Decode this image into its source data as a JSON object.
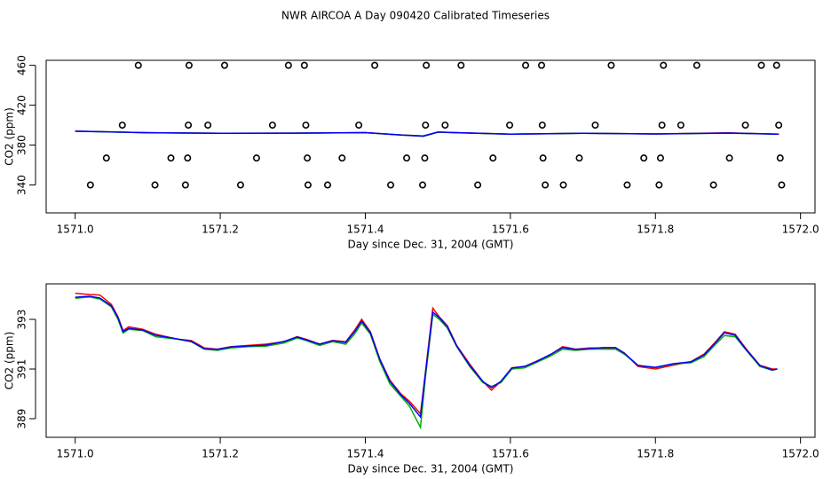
{
  "title": "NWR AIRCOA A  Day 090420  Calibrated Timeseries",
  "chart_data": [
    {
      "type": "scatter",
      "xlabel": "Day since Dec. 31, 2004 (GMT)",
      "ylabel": "CO2 (ppm)",
      "xlim": [
        1570.96,
        1572.02
      ],
      "ylim": [
        312,
        465
      ],
      "xticks": [
        {
          "value": 1571,
          "label": "1571.0"
        },
        1571.2,
        1571.4,
        1571.6,
        1571.8,
        {
          "value": 1572,
          "label": "1572.0"
        }
      ],
      "yticks": [
        340,
        380,
        420,
        460
      ],
      "points": {
        "color": "#000000",
        "x": [
          1571.087,
          1571.157,
          1571.206,
          1571.294,
          1571.316,
          1571.413,
          1571.484,
          1571.532,
          1571.621,
          1571.643,
          1571.739,
          1571.811,
          1571.857,
          1571.946,
          1571.967,
          1571.065,
          1571.156,
          1571.183,
          1571.272,
          1571.318,
          1571.391,
          1571.483,
          1571.51,
          1571.599,
          1571.644,
          1571.717,
          1571.809,
          1571.835,
          1571.924,
          1571.97,
          1571.043,
          1571.132,
          1571.155,
          1571.25,
          1571.32,
          1571.368,
          1571.457,
          1571.482,
          1571.576,
          1571.645,
          1571.695,
          1571.784,
          1571.807,
          1571.902,
          1571.972,
          1571.021,
          1571.11,
          1571.152,
          1571.228,
          1571.321,
          1571.348,
          1571.435,
          1571.479,
          1571.555,
          1571.648,
          1571.673,
          1571.761,
          1571.805,
          1571.88,
          1571.974
        ],
        "y": [
          460,
          460,
          460,
          460,
          460,
          460,
          460,
          460,
          460,
          460,
          460,
          460,
          460,
          460,
          460,
          400,
          400,
          400,
          400,
          400,
          400,
          400,
          400,
          400,
          400,
          400,
          400,
          400,
          400,
          400,
          367,
          367,
          367,
          367,
          367,
          367,
          367,
          367,
          367,
          367,
          367,
          367,
          367,
          367,
          367,
          340,
          340,
          340,
          340,
          340,
          340,
          340,
          340,
          340,
          340,
          340,
          340,
          340,
          340,
          340
        ]
      },
      "lines": {
        "x": [
          1571.0,
          1571.1,
          1571.2,
          1571.3,
          1571.4,
          1571.45,
          1571.48,
          1571.5,
          1571.6,
          1571.7,
          1571.8,
          1571.9,
          1571.97
        ],
        "series": [
          {
            "color": "#ff0000",
            "values": [
              393.9,
              392.4,
              391.8,
              392.0,
              392.5,
              390.2,
              389.2,
              393.0,
              391.0,
              391.8,
              391.2,
              392.2,
              391.0
            ]
          },
          {
            "color": "#00b000",
            "values": [
              393.8,
              392.4,
              391.8,
              392.0,
              392.4,
              390.0,
              388.8,
              392.9,
              391.0,
              391.8,
              391.2,
              392.0,
              391.0
            ]
          },
          {
            "color": "#0000ff",
            "values": [
              393.9,
              392.4,
              391.8,
              392.0,
              392.5,
              390.0,
              389.0,
              393.0,
              391.0,
              391.8,
              391.2,
              392.1,
              391.0
            ]
          }
        ]
      }
    },
    {
      "type": "line",
      "xlabel": "Day since Dec. 31, 2004 (GMT)",
      "ylabel": "CO2 (ppm)",
      "xlim": [
        1570.96,
        1572.02
      ],
      "ylim": [
        388.25,
        394.43
      ],
      "xticks": [
        {
          "value": 1571,
          "label": "1571.0"
        },
        1571.2,
        1571.4,
        1571.6,
        1571.8,
        {
          "value": 1572,
          "label": "1572.0"
        }
      ],
      "yticks": [
        389,
        391,
        393
      ],
      "x": [
        1571.0,
        1571.02,
        1571.034,
        1571.05,
        1571.059,
        1571.066,
        1571.074,
        1571.093,
        1571.111,
        1571.141,
        1571.16,
        1571.178,
        1571.196,
        1571.215,
        1571.239,
        1571.263,
        1571.288,
        1571.306,
        1571.318,
        1571.337,
        1571.355,
        1571.373,
        1571.385,
        1571.395,
        1571.407,
        1571.42,
        1571.434,
        1571.449,
        1571.461,
        1571.476,
        1571.483,
        1571.493,
        1571.502,
        1571.513,
        1571.526,
        1571.544,
        1571.562,
        1571.574,
        1571.587,
        1571.602,
        1571.62,
        1571.635,
        1571.654,
        1571.672,
        1571.69,
        1571.709,
        1571.727,
        1571.745,
        1571.757,
        1571.776,
        1571.8,
        1571.824,
        1571.849,
        1571.867,
        1571.883,
        1571.895,
        1571.91,
        1571.924,
        1571.944,
        1571.961,
        1571.968
      ],
      "series": [
        {
          "color": "#ff0000",
          "values": [
            394.05,
            394.0,
            393.98,
            393.6,
            393.1,
            392.55,
            392.7,
            392.6,
            392.4,
            392.2,
            392.15,
            391.85,
            391.8,
            391.9,
            391.95,
            392.0,
            392.1,
            392.3,
            392.2,
            392.0,
            392.15,
            392.1,
            392.55,
            393.0,
            392.5,
            391.4,
            390.55,
            390.0,
            389.7,
            389.2,
            390.9,
            393.45,
            393.1,
            392.75,
            391.95,
            391.2,
            390.5,
            390.15,
            390.5,
            391.05,
            391.1,
            391.3,
            391.55,
            391.9,
            391.8,
            391.85,
            391.85,
            391.85,
            391.65,
            391.1,
            391.0,
            391.15,
            391.3,
            391.6,
            392.1,
            392.5,
            392.4,
            391.85,
            391.15,
            391.0,
            391.0
          ]
        },
        {
          "color": "#00b000",
          "values": [
            393.85,
            393.9,
            393.82,
            393.5,
            393.0,
            392.45,
            392.6,
            392.55,
            392.3,
            392.2,
            392.1,
            391.8,
            391.75,
            391.85,
            391.9,
            391.92,
            392.05,
            392.25,
            392.15,
            391.95,
            392.1,
            392.0,
            392.4,
            392.85,
            392.4,
            391.3,
            390.4,
            389.9,
            389.5,
            388.65,
            390.7,
            393.2,
            393.0,
            392.65,
            391.9,
            391.1,
            390.45,
            390.3,
            390.45,
            391.0,
            391.05,
            391.25,
            391.5,
            391.8,
            391.75,
            391.8,
            391.8,
            391.8,
            391.6,
            391.15,
            391.05,
            391.2,
            391.25,
            391.5,
            392.0,
            392.35,
            392.3,
            391.8,
            391.1,
            390.95,
            391.0
          ]
        },
        {
          "color": "#0000ff",
          "values": [
            393.89,
            393.93,
            393.86,
            393.54,
            393.07,
            392.5,
            392.64,
            392.57,
            392.36,
            392.21,
            392.11,
            391.82,
            391.79,
            391.89,
            391.93,
            391.96,
            392.11,
            392.29,
            392.18,
            392.0,
            392.14,
            392.07,
            392.5,
            392.93,
            392.46,
            391.39,
            390.5,
            389.96,
            389.61,
            389.07,
            390.86,
            393.29,
            393.07,
            392.71,
            391.93,
            391.14,
            390.5,
            390.25,
            390.5,
            391.04,
            391.11,
            391.29,
            391.57,
            391.86,
            391.79,
            391.82,
            391.86,
            391.86,
            391.64,
            391.14,
            391.07,
            391.21,
            391.29,
            391.57,
            392.07,
            392.46,
            392.36,
            391.82,
            391.14,
            390.96,
            391.0
          ]
        }
      ]
    }
  ]
}
